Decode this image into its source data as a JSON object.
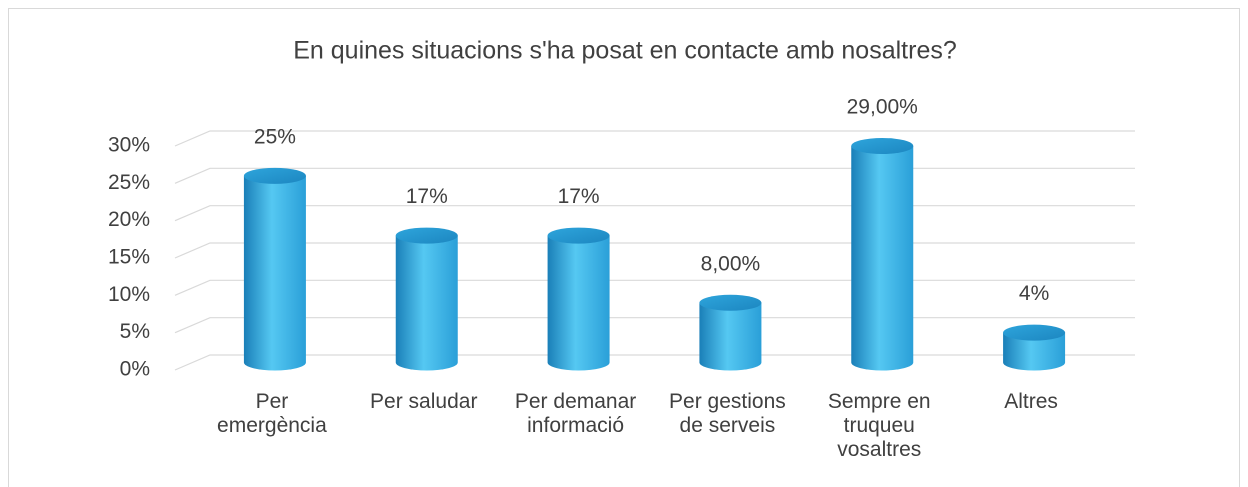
{
  "chart_data": {
    "type": "bar3d",
    "title": "En quines situacions s'ha posat en contacte amb nosaltres?",
    "categories": [
      "Per\nemergència",
      "Per saludar",
      "Per demanar\ninformació",
      "Per gestions\nde serveis",
      "Sempre en\ntruqueu\nvosaltres",
      "Altres"
    ],
    "values": [
      25,
      17,
      17,
      8,
      29,
      4
    ],
    "value_labels": [
      "25%",
      "17%",
      "17%",
      "8,00%",
      "29,00%",
      "4%"
    ],
    "color": "#2a9fd8",
    "ylim": [
      0,
      30
    ],
    "yticks": [
      {
        "value": 0,
        "label": "0%"
      },
      {
        "value": 5,
        "label": "5%"
      },
      {
        "value": 10,
        "label": "10%"
      },
      {
        "value": 15,
        "label": "15%"
      },
      {
        "value": 20,
        "label": "20%"
      },
      {
        "value": 25,
        "label": "25%"
      },
      {
        "value": 30,
        "label": "30%"
      }
    ],
    "grid": true
  }
}
